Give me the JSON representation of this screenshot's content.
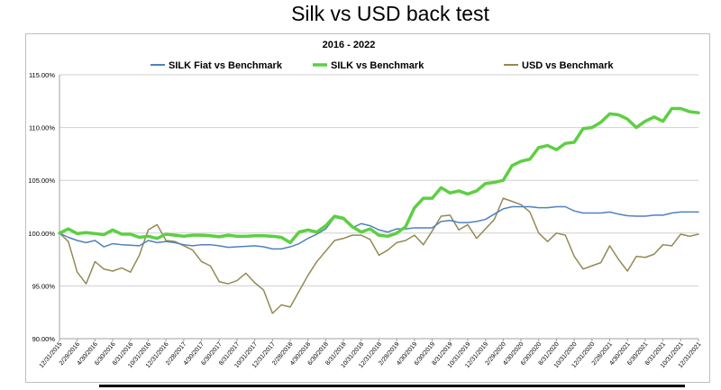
{
  "chart_data": {
    "type": "line",
    "title": "Silk vs USD back test",
    "subtitle": "2016 - 2022",
    "ylim": [
      90,
      115
    ],
    "yticks": [
      "90.00%",
      "95.00%",
      "100.00%",
      "105.00%",
      "110.00%",
      "115.00%"
    ],
    "ytick_values": [
      90,
      95,
      100,
      105,
      110,
      115
    ],
    "grid": true,
    "legend_position": "top",
    "x": [
      "12/31/2015",
      "1/31/2016",
      "2/29/2016",
      "3/31/2016",
      "4/30/2016",
      "5/31/2016",
      "6/30/2016",
      "7/31/2016",
      "8/31/2016",
      "9/30/2016",
      "10/31/2016",
      "11/30/2016",
      "12/31/2016",
      "1/31/2017",
      "2/28/2017",
      "3/31/2017",
      "4/30/2017",
      "5/31/2017",
      "6/30/2017",
      "7/31/2017",
      "8/31/2017",
      "9/30/2017",
      "10/31/2017",
      "11/30/2017",
      "12/31/2017",
      "1/31/2018",
      "2/28/2018",
      "3/31/2018",
      "4/30/2018",
      "5/31/2018",
      "6/30/2018",
      "7/31/2018",
      "8/31/2018",
      "9/30/2018",
      "10/31/2018",
      "11/30/2018",
      "12/31/2018",
      "1/31/2019",
      "2/28/2019",
      "3/31/2019",
      "4/30/2019",
      "5/31/2019",
      "6/30/2019",
      "7/31/2019",
      "8/31/2019",
      "9/30/2019",
      "10/31/2019",
      "11/30/2019",
      "12/31/2019",
      "1/31/2020",
      "2/29/2020",
      "3/31/2020",
      "4/30/2020",
      "5/31/2020",
      "6/30/2020",
      "7/31/2020",
      "8/31/2020",
      "9/30/2020",
      "10/31/2020",
      "11/30/2020",
      "12/31/2020",
      "1/31/2021",
      "2/28/2021",
      "3/31/2021",
      "4/30/2021",
      "5/31/2021",
      "6/30/2021",
      "7/31/2021",
      "8/31/2021",
      "9/30/2021",
      "10/31/2021",
      "11/30/2021",
      "12/31/2021"
    ],
    "tick_labels": [
      "12/31/2015",
      "2/29/2016",
      "4/30/2016",
      "6/30/2016",
      "8/31/2016",
      "10/31/2016",
      "12/31/2016",
      "2/28/2017",
      "4/30/2017",
      "6/30/2017",
      "8/31/2017",
      "10/31/2017",
      "12/31/2017",
      "2/28/2018",
      "4/30/2018",
      "6/30/2018",
      "8/31/2018",
      "10/31/2018",
      "12/31/2018",
      "2/28/2019",
      "4/30/2019",
      "6/30/2019",
      "8/31/2019",
      "10/31/2019",
      "12/31/2019",
      "2/29/2020",
      "4/30/2020",
      "6/30/2020",
      "8/31/2020",
      "10/31/2020",
      "12/31/2020",
      "2/28/2021",
      "4/30/2021",
      "6/30/2021",
      "8/31/2021",
      "10/31/2021",
      "12/31/2021"
    ],
    "series": [
      {
        "name": "SILK Fiat vs Benchmark",
        "color": "#4f81bd",
        "values": [
          100.0,
          99.6,
          99.3,
          99.1,
          99.3,
          98.7,
          99.0,
          98.9,
          98.85,
          98.8,
          99.3,
          99.1,
          99.2,
          99.1,
          98.9,
          98.8,
          98.9,
          98.9,
          98.8,
          98.65,
          98.7,
          98.75,
          98.8,
          98.7,
          98.5,
          98.5,
          98.7,
          99.0,
          99.5,
          99.9,
          100.4,
          101.5,
          101.3,
          100.5,
          100.9,
          100.7,
          100.3,
          100.1,
          100.4,
          100.4,
          100.5,
          100.5,
          100.5,
          101.1,
          101.2,
          101.0,
          101.0,
          101.1,
          101.3,
          101.8,
          102.3,
          102.5,
          102.5,
          102.5,
          102.4,
          102.4,
          102.5,
          102.5,
          102.1,
          101.9,
          101.9,
          101.9,
          102.0,
          101.8,
          101.65,
          101.6,
          101.6,
          101.7,
          101.7,
          101.9,
          102.0,
          102.0,
          102.0
        ]
      },
      {
        "name": "SILK  vs Benchmark",
        "color": "#5dcf43",
        "values": [
          100.0,
          100.4,
          99.95,
          100.05,
          99.95,
          99.85,
          100.3,
          99.9,
          99.9,
          99.6,
          99.7,
          99.5,
          99.9,
          99.8,
          99.7,
          99.8,
          99.8,
          99.75,
          99.65,
          99.8,
          99.7,
          99.7,
          99.75,
          99.75,
          99.7,
          99.6,
          99.1,
          100.1,
          100.3,
          100.1,
          100.7,
          101.6,
          101.4,
          100.6,
          100.1,
          100.4,
          99.8,
          99.7,
          100.0,
          100.6,
          102.4,
          103.3,
          103.3,
          104.3,
          103.8,
          104.0,
          103.7,
          104.0,
          104.7,
          104.8,
          105.0,
          106.4,
          106.8,
          107.0,
          108.1,
          108.3,
          107.9,
          108.5,
          108.6,
          109.9,
          110.0,
          110.5,
          111.3,
          111.2,
          110.8,
          110.0,
          110.6,
          111.0,
          110.6,
          111.8,
          111.8,
          111.5,
          111.4
        ]
      },
      {
        "name": "USD vs Benchmark",
        "color": "#948a54",
        "values": [
          100.0,
          99.2,
          96.3,
          95.2,
          97.3,
          96.6,
          96.4,
          96.7,
          96.3,
          97.9,
          100.3,
          100.8,
          99.3,
          99.2,
          98.8,
          98.4,
          97.3,
          96.9,
          95.4,
          95.2,
          95.5,
          96.2,
          95.3,
          94.6,
          92.4,
          93.2,
          93.0,
          94.5,
          96.0,
          97.3,
          98.3,
          99.3,
          99.5,
          99.8,
          99.8,
          99.4,
          97.9,
          98.4,
          99.1,
          99.3,
          99.8,
          98.9,
          100.2,
          101.6,
          101.7,
          100.3,
          100.8,
          99.5,
          100.4,
          101.3,
          103.3,
          103.0,
          102.7,
          102.0,
          100.0,
          99.2,
          100.0,
          99.8,
          97.8,
          96.6,
          96.9,
          97.2,
          98.8,
          97.5,
          96.4,
          97.8,
          97.7,
          98.0,
          98.9,
          98.8,
          99.9,
          99.7,
          99.9
        ]
      }
    ]
  }
}
